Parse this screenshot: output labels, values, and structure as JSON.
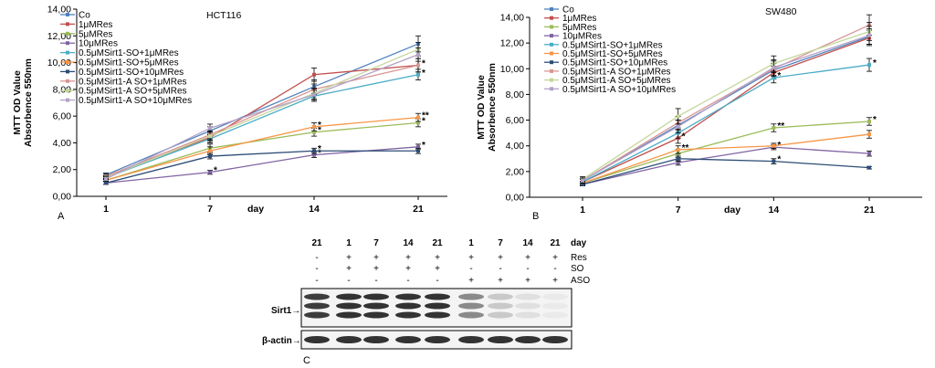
{
  "chart_data": [
    {
      "type": "line",
      "panel": "A",
      "title": "HCT116",
      "xlabel": "day",
      "ylabel": [
        "MTT OD Value",
        "Absorbence 550nm"
      ],
      "x": [
        "1",
        "7",
        "14",
        "21"
      ],
      "ylim": [
        0,
        14
      ],
      "yticks": [
        "0,00",
        "2,00",
        "4,00",
        "6,00",
        "8,00",
        "10,00",
        "12,00",
        "14,00"
      ],
      "legend_position": "top-left",
      "series": [
        {
          "name": "Co",
          "color": "#4f81bd",
          "values": [
            1.6,
            4.9,
            8.2,
            11.4
          ],
          "err": [
            0.15,
            0.3,
            0.5,
            0.6
          ],
          "marks": [
            "",
            "",
            "",
            ""
          ]
        },
        {
          "name": "1μMRes",
          "color": "#c0504d",
          "values": [
            1.5,
            4.4,
            9.1,
            9.8
          ],
          "err": [
            0.15,
            0.3,
            0.5,
            0.5
          ],
          "marks": [
            "",
            "",
            "",
            ""
          ]
        },
        {
          "name": "5μMRes",
          "color": "#9bbb59",
          "values": [
            1.2,
            3.6,
            4.8,
            5.5
          ],
          "err": [
            0.1,
            0.3,
            0.3,
            0.3
          ],
          "marks": [
            "",
            "",
            "*",
            "*"
          ]
        },
        {
          "name": "10μMRes",
          "color": "#8064a2",
          "values": [
            1.0,
            1.8,
            3.1,
            3.7
          ],
          "err": [
            0.1,
            0.15,
            0.2,
            0.2
          ],
          "marks": [
            "",
            "*",
            "*",
            "*"
          ]
        },
        {
          "name": "0.5μMSirt1-SO+1μMRes",
          "color": "#4bacc6",
          "values": [
            1.4,
            4.3,
            7.5,
            9.1
          ],
          "err": [
            0.1,
            0.3,
            0.4,
            0.4
          ],
          "marks": [
            "",
            "",
            "",
            "*"
          ]
        },
        {
          "name": "0.5μMSirt1-SO+5μMRes",
          "color": "#f79646",
          "values": [
            1.2,
            3.4,
            5.2,
            5.9
          ],
          "err": [
            0.1,
            0.3,
            0.3,
            0.3
          ],
          "marks": [
            "",
            "",
            "*",
            "**"
          ]
        },
        {
          "name": "0.5μMSirt1-SO+10μMRes",
          "color": "#2c4d75",
          "values": [
            1.0,
            3.0,
            3.4,
            3.4
          ],
          "err": [
            0.1,
            0.2,
            0.2,
            0.2
          ],
          "marks": [
            "",
            "",
            "*",
            ""
          ]
        },
        {
          "name": "0.5μMSirt1-A SO+1μMRes",
          "color": "#d99694",
          "values": [
            1.5,
            4.6,
            8.0,
            9.8
          ],
          "err": [
            0.15,
            0.3,
            0.4,
            0.5
          ],
          "marks": [
            "",
            "",
            "",
            "*"
          ]
        },
        {
          "name": "0.5μMSirt1-A SO+5μMRes",
          "color": "#c3d69b",
          "values": [
            1.4,
            4.5,
            7.7,
            11.0
          ],
          "err": [
            0.15,
            0.3,
            0.4,
            0.5
          ],
          "marks": [
            "",
            "",
            "",
            ""
          ]
        },
        {
          "name": "0.5μMSirt1-A SO+10μMRes",
          "color": "#b3a2c7",
          "values": [
            1.3,
            5.1,
            7.6,
            10.6
          ],
          "err": [
            0.15,
            0.3,
            0.4,
            0.5
          ],
          "marks": [
            "",
            "",
            "",
            ""
          ]
        }
      ]
    },
    {
      "type": "line",
      "panel": "B",
      "title": "SW480",
      "xlabel": "day",
      "ylabel": [
        "MTT OD Value",
        "Absorbence 550nm"
      ],
      "x": [
        "1",
        "7",
        "14",
        "21"
      ],
      "ylim": [
        0,
        14
      ],
      "yticks": [
        "0,00",
        "2,00",
        "4,00",
        "6,00",
        "8,00",
        "10,00",
        "12,00",
        "14,00"
      ],
      "legend_position": "top-left",
      "series": [
        {
          "name": "Co",
          "color": "#4f81bd",
          "values": [
            1.3,
            5.6,
            9.9,
            12.5
          ],
          "err": [
            0.2,
            0.4,
            0.5,
            0.6
          ],
          "marks": [
            "",
            "",
            "",
            ""
          ]
        },
        {
          "name": "1μMRes",
          "color": "#c0504d",
          "values": [
            1.2,
            4.6,
            9.7,
            12.4
          ],
          "err": [
            0.2,
            0.4,
            0.5,
            0.6
          ],
          "marks": [
            "",
            "*",
            "",
            ""
          ]
        },
        {
          "name": "5μMRes",
          "color": "#9bbb59",
          "values": [
            1.1,
            3.4,
            5.4,
            5.9
          ],
          "err": [
            0.15,
            0.3,
            0.3,
            0.3
          ],
          "marks": [
            "",
            "",
            "**",
            "*"
          ]
        },
        {
          "name": "10μMRes",
          "color": "#8064a2",
          "values": [
            1.0,
            2.7,
            3.9,
            3.4
          ],
          "err": [
            0.1,
            0.2,
            0.2,
            0.2
          ],
          "marks": [
            "",
            "",
            "*",
            ""
          ]
        },
        {
          "name": "0.5μMSirt1-SO+1μMRes",
          "color": "#4bacc6",
          "values": [
            1.2,
            5.0,
            9.3,
            10.3
          ],
          "err": [
            0.2,
            0.4,
            0.4,
            0.5
          ],
          "marks": [
            "",
            "",
            "*",
            "*"
          ]
        },
        {
          "name": "0.5μMSirt1-SO+5μMRes",
          "color": "#f79646",
          "values": [
            1.1,
            3.7,
            4.0,
            4.9
          ],
          "err": [
            0.15,
            0.3,
            0.2,
            0.3
          ],
          "marks": [
            "",
            "**",
            "",
            ""
          ]
        },
        {
          "name": "0.5μMSirt1-SO+10μMRes",
          "color": "#2c4d75",
          "values": [
            1.0,
            3.0,
            2.8,
            2.3
          ],
          "err": [
            0.1,
            0.2,
            0.2,
            0.1
          ],
          "marks": [
            "",
            "",
            "*",
            ""
          ]
        },
        {
          "name": "0.5μMSirt1-A SO+1μMRes",
          "color": "#d99694",
          "values": [
            1.3,
            5.8,
            10.0,
            13.4
          ],
          "err": [
            0.2,
            0.5,
            0.6,
            0.8
          ],
          "marks": [
            "",
            "",
            "",
            ""
          ]
        },
        {
          "name": "0.5μMSirt1-A SO+5μMRes",
          "color": "#c3d69b",
          "values": [
            1.4,
            6.3,
            10.4,
            12.9
          ],
          "err": [
            0.2,
            0.6,
            0.6,
            0.7
          ],
          "marks": [
            "",
            "",
            "",
            ""
          ]
        },
        {
          "name": "0.5μMSirt1-A SO+10μMRes",
          "color": "#b3a2c7",
          "values": [
            1.3,
            5.5,
            10.1,
            12.6
          ],
          "err": [
            0.2,
            0.5,
            0.6,
            0.7
          ],
          "marks": [
            "",
            "",
            "",
            ""
          ]
        }
      ]
    }
  ],
  "blot": {
    "panel": "C",
    "columns": [
      {
        "day": "21",
        "res": "-",
        "so": "-",
        "aso": "-",
        "sirt1": 0.95
      },
      {
        "day": "1",
        "res": "+",
        "so": "+",
        "aso": "-",
        "sirt1": 1.0
      },
      {
        "day": "7",
        "res": "+",
        "so": "+",
        "aso": "-",
        "sirt1": 1.0
      },
      {
        "day": "14",
        "res": "+",
        "so": "+",
        "aso": "-",
        "sirt1": 1.0
      },
      {
        "day": "21",
        "res": "+",
        "so": "+",
        "aso": "-",
        "sirt1": 1.0
      },
      {
        "day": "1",
        "res": "+",
        "so": "-",
        "aso": "+",
        "sirt1": 0.55
      },
      {
        "day": "7",
        "res": "+",
        "so": "-",
        "aso": "+",
        "sirt1": 0.22
      },
      {
        "day": "14",
        "res": "+",
        "so": "-",
        "aso": "+",
        "sirt1": 0.1
      },
      {
        "day": "21",
        "res": "+",
        "so": "-",
        "aso": "+",
        "sirt1": 0.05
      }
    ],
    "row_labels": {
      "day": "day",
      "res": "Res",
      "so": "SO",
      "aso": "ASO"
    },
    "bands": [
      "Sirt1",
      "β-actin"
    ]
  }
}
